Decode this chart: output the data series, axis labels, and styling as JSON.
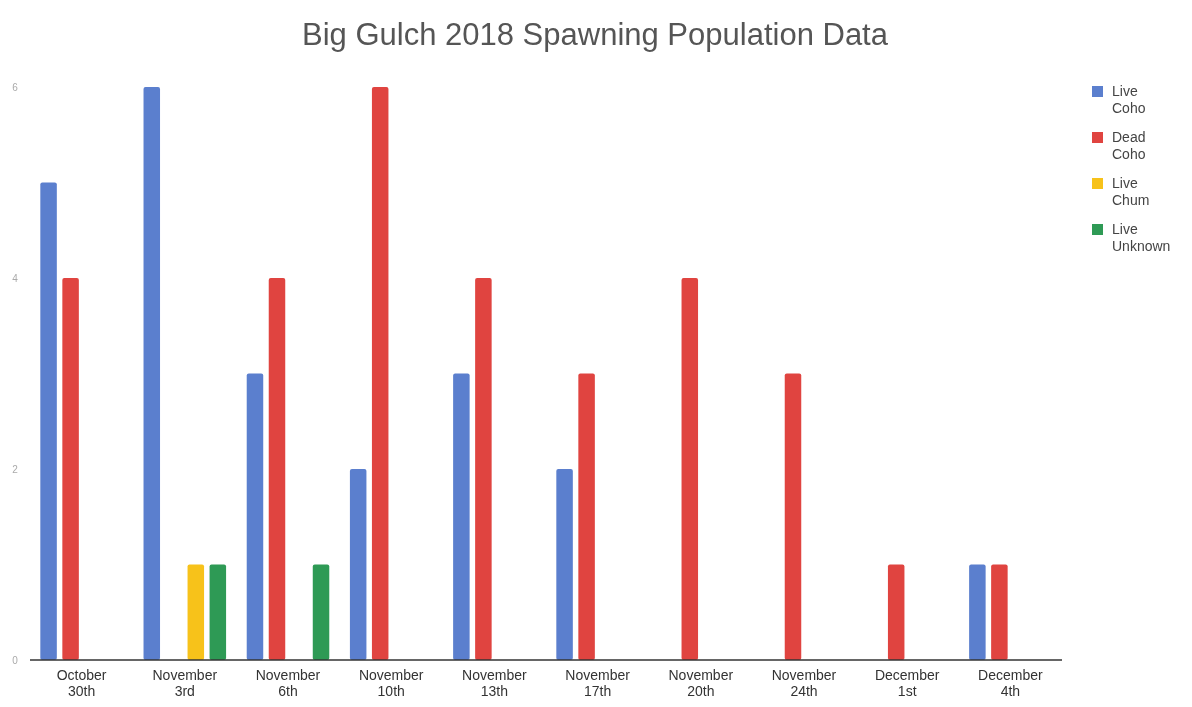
{
  "chart_data": {
    "type": "bar",
    "title": "Big Gulch 2018 Spawning Population Data",
    "categories": [
      "October 30th",
      "November 3rd",
      "November 6th",
      "November 10th",
      "November 13th",
      "November 17th",
      "November 20th",
      "November 24th",
      "December 1st",
      "December 4th"
    ],
    "series": [
      {
        "name": "Live Coho",
        "color": "#5b7fce",
        "values": [
          5,
          6,
          3,
          2,
          3,
          2,
          0,
          0,
          0,
          1
        ]
      },
      {
        "name": "Dead Coho",
        "color": "#e04440",
        "values": [
          4,
          0,
          4,
          6,
          4,
          3,
          4,
          3,
          1,
          1
        ]
      },
      {
        "name": "Live Chum",
        "color": "#f7c21a",
        "values": [
          0,
          1,
          0,
          0,
          0,
          0,
          0,
          0,
          0,
          0
        ]
      },
      {
        "name": "Live Unknown",
        "color": "#2e9a55",
        "values": [
          0,
          1,
          1,
          0,
          0,
          0,
          0,
          0,
          0,
          0
        ]
      }
    ],
    "ylim": [
      0,
      6
    ],
    "yticks": [
      0,
      2,
      4,
      6
    ],
    "grid": false,
    "legend": "top right"
  }
}
